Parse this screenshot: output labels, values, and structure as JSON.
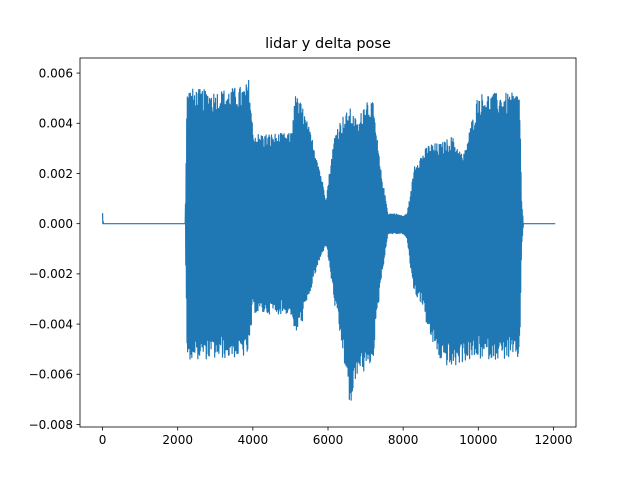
{
  "chart_data": {
    "type": "line",
    "title": "lidar y delta pose",
    "xlabel": "",
    "ylabel": "",
    "xlim": [
      -600,
      12600
    ],
    "ylim": [
      -0.0081,
      0.0066
    ],
    "grid": false,
    "legend": "none",
    "x_ticks": [
      0,
      2000,
      4000,
      6000,
      8000,
      10000,
      12000
    ],
    "x_tick_labels": [
      "0",
      "2000",
      "4000",
      "6000",
      "8000",
      "10000",
      "12000"
    ],
    "y_ticks": [
      -0.008,
      -0.006,
      -0.004,
      -0.002,
      0.0,
      0.002,
      0.004,
      0.006
    ],
    "y_tick_labels": [
      "−0.008",
      "−0.006",
      "−0.004",
      "−0.002",
      "0.000",
      "0.002",
      "0.004",
      "0.006"
    ],
    "series": [
      {
        "color": "#1f77b4",
        "description_points": {
          "x_samples": [
            0,
            20,
            40,
            2200,
            2250,
            2300,
            3000,
            3800,
            3900,
            4000,
            4100,
            5000,
            5050,
            5100,
            5300,
            5700,
            5950,
            6050,
            6200,
            6400,
            6600,
            6800,
            7000,
            7200,
            7400,
            7600,
            7800,
            8000,
            8100,
            8200,
            8300,
            8500,
            8700,
            9000,
            9300,
            9600,
            10000,
            10500,
            11100,
            11150,
            11200,
            11300,
            12050
          ],
          "upper_envelope": [
            0.00045,
            0.0,
            0.0,
            0.0,
            0.0054,
            0.0054,
            0.0053,
            0.0055,
            0.0058,
            0.0038,
            0.0036,
            0.0036,
            0.0038,
            0.0052,
            0.0048,
            0.0028,
            0.001,
            0.0022,
            0.0038,
            0.0043,
            0.0046,
            0.004,
            0.0051,
            0.0048,
            0.0022,
            0.0004,
            0.0004,
            0.0003,
            0.0004,
            0.0012,
            0.0024,
            0.0028,
            0.0032,
            0.0032,
            0.0035,
            0.0027,
            0.0052,
            0.0052,
            0.0052,
            0.001,
            0.0,
            0.0,
            0.0
          ],
          "lower_envelope": [
            0.0,
            0.0,
            0.0,
            0.0,
            -0.0055,
            -0.0054,
            -0.0054,
            -0.0053,
            -0.0052,
            -0.0035,
            -0.0036,
            -0.0036,
            -0.0038,
            -0.0045,
            -0.004,
            -0.0018,
            -0.0008,
            -0.0018,
            -0.0035,
            -0.0052,
            -0.0075,
            -0.0058,
            -0.006,
            -0.0054,
            -0.0024,
            -0.0004,
            -0.0004,
            -0.0004,
            -0.0006,
            -0.0018,
            -0.0028,
            -0.0032,
            -0.0045,
            -0.0055,
            -0.0058,
            -0.0055,
            -0.0054,
            -0.0054,
            -0.0054,
            -0.001,
            0.0,
            0.0,
            0.0
          ]
        }
      }
    ]
  }
}
